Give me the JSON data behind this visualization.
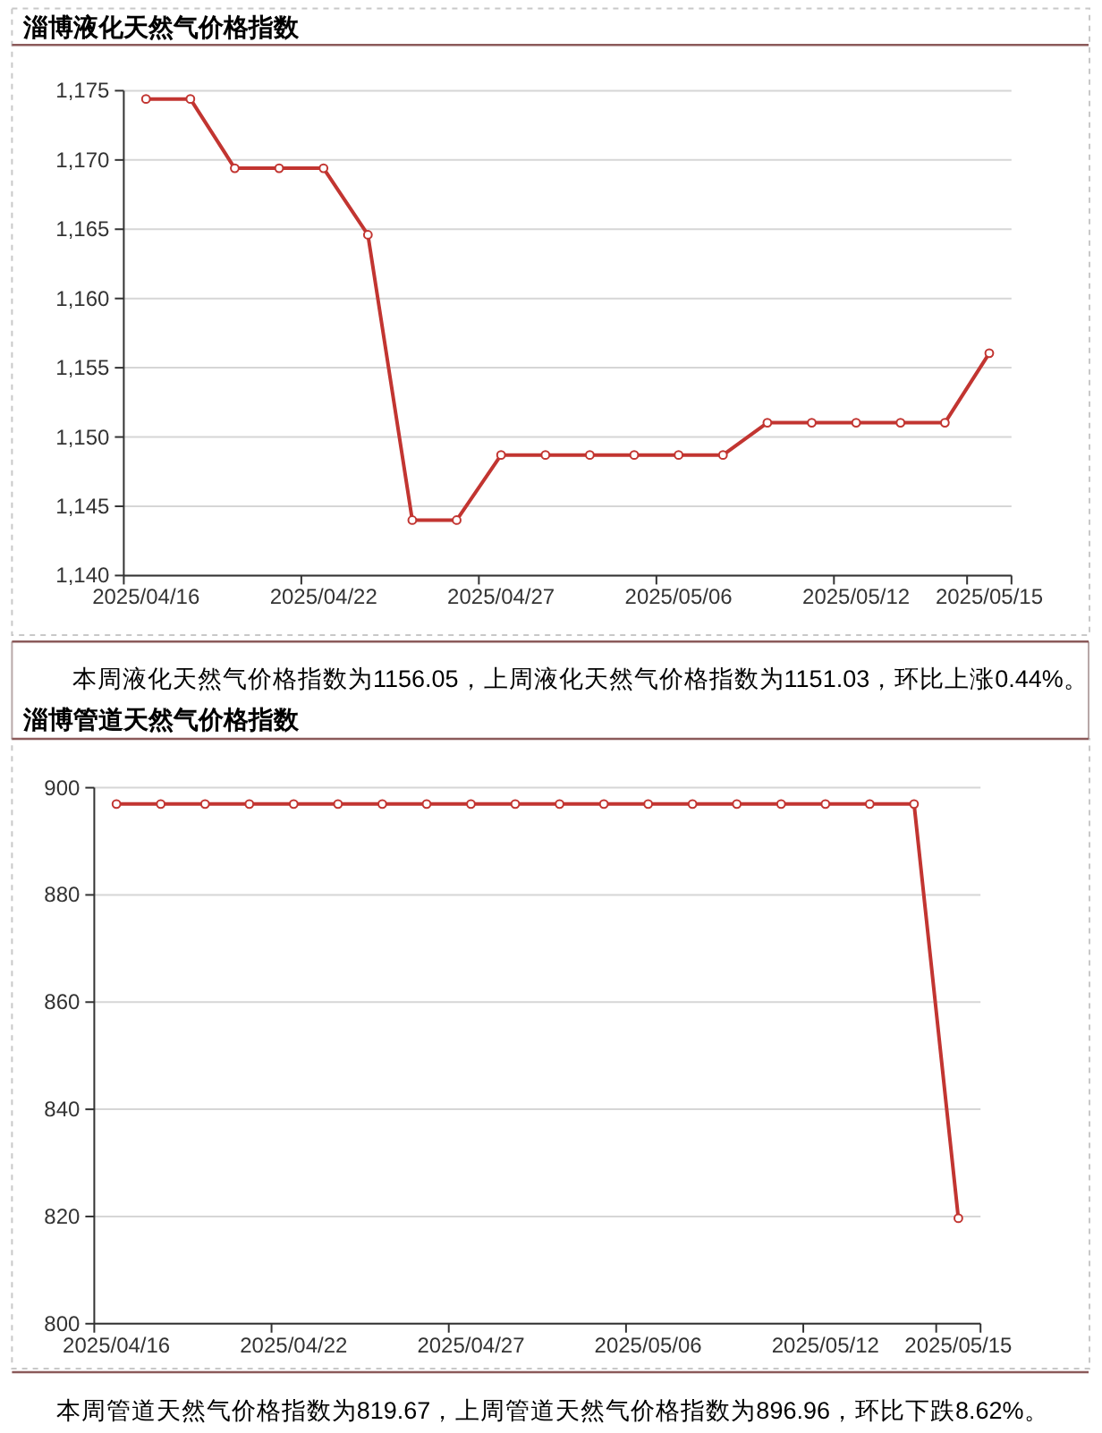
{
  "chart_data": [
    {
      "type": "line",
      "title": "淄博液化天然气价格指数",
      "categories": [
        "2025/04/16",
        null,
        null,
        null,
        "2025/04/22",
        null,
        null,
        null,
        "2025/04/27",
        null,
        null,
        null,
        "2025/05/06",
        null,
        null,
        null,
        "2025/05/12",
        null,
        null,
        "2025/05/15"
      ],
      "series": [
        {
          "color": "#c23531",
          "values": [
            1174.4,
            1174.4,
            1169.4,
            1169.4,
            1169.4,
            1164.6,
            1144.0,
            1144.0,
            1148.7,
            1148.7,
            1148.7,
            1148.7,
            1148.7,
            1148.7,
            1151.03,
            1151.03,
            1151.03,
            1151.03,
            1151.03,
            1156.05
          ]
        }
      ],
      "ylim": [
        1140,
        1175
      ],
      "yticks": [
        {
          "value": 1140,
          "label": "1,140"
        },
        {
          "value": 1145,
          "label": "1,145"
        },
        {
          "value": 1150,
          "label": "1,150"
        },
        {
          "value": 1155,
          "label": "1,155"
        },
        {
          "value": 1160,
          "label": "1,160"
        },
        {
          "value": 1165,
          "label": "1,165"
        },
        {
          "value": 1170,
          "label": "1,170"
        },
        {
          "value": 1175,
          "label": "1,175"
        }
      ],
      "grid": "y",
      "marker": "circle",
      "annotations": [
        "本周液化天然气价格指数为1156.05，上周液化天然气价格指数为1151.03，环比上涨0.44%。"
      ]
    },
    {
      "type": "line",
      "title": "淄博管道天然气价格指数",
      "categories": [
        "2025/04/16",
        null,
        null,
        null,
        "2025/04/22",
        null,
        null,
        null,
        "2025/04/27",
        null,
        null,
        null,
        "2025/05/06",
        null,
        null,
        null,
        "2025/05/12",
        null,
        null,
        "2025/05/15"
      ],
      "series": [
        {
          "color": "#c23531",
          "values": [
            896.96,
            896.96,
            896.96,
            896.96,
            896.96,
            896.96,
            896.96,
            896.96,
            896.96,
            896.96,
            896.96,
            896.96,
            896.96,
            896.96,
            896.96,
            896.96,
            896.96,
            896.96,
            896.96,
            819.67
          ]
        }
      ],
      "ylim": [
        800,
        900
      ],
      "yticks": [
        800,
        820,
        840,
        860,
        880,
        900
      ],
      "grid": "y",
      "marker": "circle",
      "annotations": [
        "本周管道天然气价格指数为819.67，上周管道天然气价格指数为896.96，环比下跌8.62%。"
      ]
    }
  ]
}
